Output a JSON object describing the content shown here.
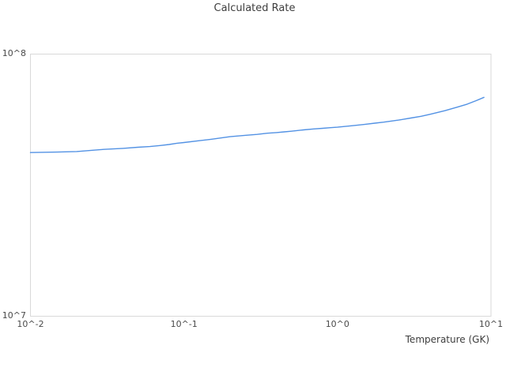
{
  "title": "Calculated Rate",
  "colors": {
    "line": "#5392e4",
    "plot_border": "#d9d9d9",
    "title_text": "#3d3d3d",
    "tick_text": "#4a4a4a",
    "background": "#ffffff"
  },
  "x_axis": {
    "label": "Temperature (GK)",
    "tick_labels": [
      "10^-2",
      "10^-1",
      "10^0",
      "10^1"
    ]
  },
  "y_axis": {
    "label": "",
    "tick_labels": [
      "10^7",
      "10^8"
    ]
  },
  "chart_data": {
    "type": "line",
    "title": "Calculated Rate",
    "xlabel": "Temperature (GK)",
    "ylabel": "",
    "xscale": "log",
    "yscale": "log",
    "xlim": [
      0.01,
      10
    ],
    "ylim": [
      10000000,
      100000000
    ],
    "xtick_values": [
      0.01,
      0.1,
      1,
      10
    ],
    "xtick_labels": [
      "10^-2",
      "10^-1",
      "10^0",
      "10^1"
    ],
    "ytick_values": [
      10000000,
      100000000
    ],
    "ytick_labels": [
      "10^7",
      "10^8"
    ],
    "grid": false,
    "legend": false,
    "series": [
      {
        "name": "Calculated Rate",
        "x": [
          0.01,
          0.015,
          0.02,
          0.03,
          0.04,
          0.05,
          0.06,
          0.07,
          0.08,
          0.09,
          0.1,
          0.15,
          0.2,
          0.25,
          0.3,
          0.35,
          0.4,
          0.45,
          0.5,
          0.6,
          0.7,
          0.8,
          0.9,
          1.0,
          1.25,
          1.5,
          1.75,
          2.0,
          2.5,
          3.0,
          3.5,
          4.0,
          5.0,
          6.0,
          7.0,
          8.0,
          9.0
        ],
        "y": [
          42100000.0,
          42300000.0,
          42500000.0,
          43300000.0,
          43700000.0,
          44100000.0,
          44400000.0,
          44800000.0,
          45200000.0,
          45700000.0,
          46000000.0,
          47300000.0,
          48400000.0,
          49000000.0,
          49400000.0,
          49900000.0,
          50200000.0,
          50500000.0,
          50800000.0,
          51400000.0,
          51800000.0,
          52100000.0,
          52400000.0,
          52600000.0,
          53300000.0,
          53900000.0,
          54500000.0,
          55000000.0,
          56000000.0,
          57000000.0,
          57900000.0,
          58900000.0,
          60800000.0,
          62700000.0,
          64400000.0,
          66400000.0,
          68400000.0
        ]
      }
    ]
  }
}
